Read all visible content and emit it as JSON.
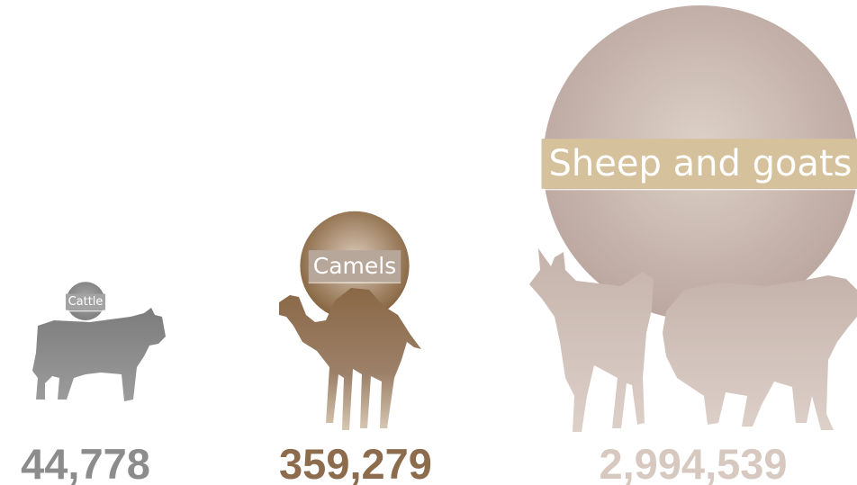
{
  "chart_data": {
    "type": "bubble",
    "categories": [
      "Cattle",
      "Camels",
      "Sheep and goats"
    ],
    "values": [
      44778,
      359279,
      2994539
    ],
    "value_labels": [
      "44,778",
      "359,279",
      "2,994,539"
    ],
    "colors": [
      "#8c8c8c",
      "#8d6c4e",
      "#d7c9c0"
    ],
    "label_colors": [
      "#a3a3a3",
      "#b7a79b",
      "#d5c19c"
    ]
  }
}
